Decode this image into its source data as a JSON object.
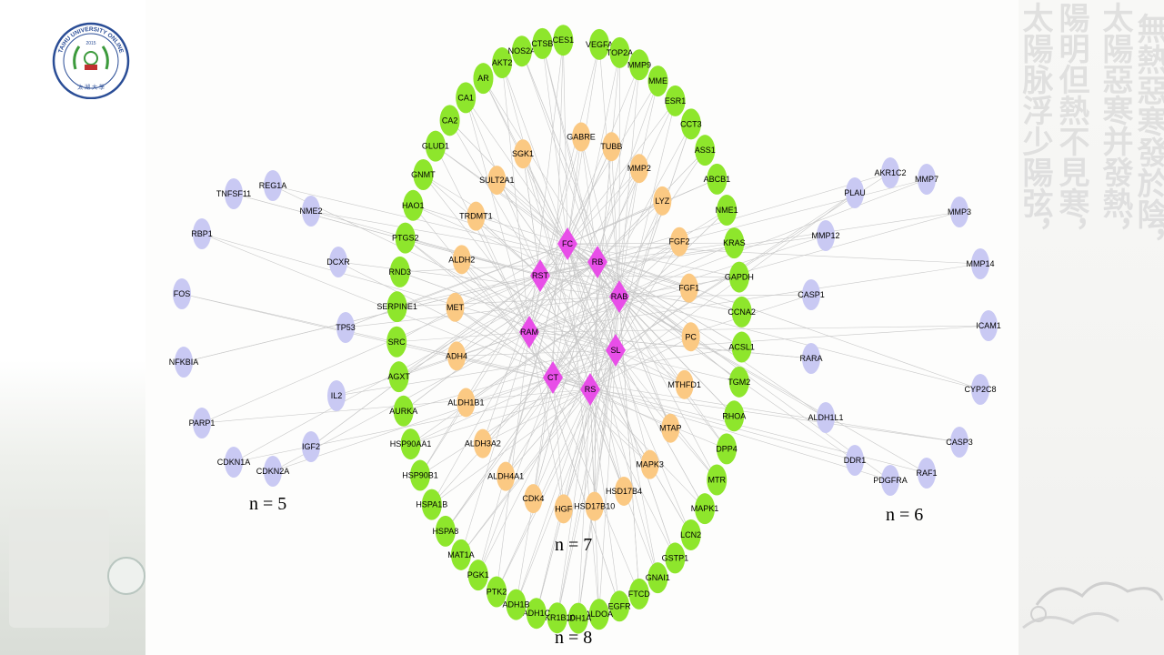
{
  "logo": {
    "top_text": "TAIHU UNIVERSITY ONLINE",
    "year": "2015",
    "bottom_text": "太 湖 大 學"
  },
  "calligraphy": [
    "無熱惡寒發於陰，",
    "太陽惡寒并發熱，",
    "陽明但熱不見寒，",
    "太陽脉浮少陽弦，"
  ],
  "network": {
    "center": [
      "FC",
      "RB",
      "RST",
      "RAB",
      "RAM",
      "SL",
      "CT",
      "RS"
    ],
    "inner_ring": [
      "GABRE",
      "TUBB",
      "MMP2",
      "LYZ",
      "FGF2",
      "FGF1",
      "PC",
      "MTHFD1",
      "MTAP",
      "MAPK3",
      "HSD17B4",
      "HSD17B10",
      "HGF",
      "CDK4",
      "ALDH4A1",
      "ALDH3A2",
      "ALDH1B1",
      "ADH4",
      "MET",
      "ALDH2",
      "TRDMT1",
      "SULT2A1",
      "SGK1"
    ],
    "outer_ring": [
      "VEGFA",
      "TOP2A",
      "MMP9",
      "MME",
      "ESR1",
      "CCT3",
      "ASS1",
      "ABCB1",
      "NME1",
      "KRAS",
      "GAPDH",
      "CCNA2",
      "ACSL1",
      "TGM2",
      "RHOA",
      "DPP4",
      "MTR",
      "MAPK1",
      "LCN2",
      "GSTP1",
      "GNAI1",
      "FTCD",
      "EGFR",
      "ALDOA",
      "LDH1A",
      "AKR1B10",
      "ADH1C",
      "ADH1B",
      "PTK2",
      "PGK1",
      "MAT1A",
      "HSPA8",
      "HSPA1B",
      "HSP90B1",
      "HSP90AA1",
      "AURKA",
      "AGXT",
      "SRC",
      "SERPINE1",
      "RND3",
      "PTGS2",
      "HAO1",
      "GNMT",
      "GLUD1",
      "CA2",
      "CA1",
      "AR",
      "AKT2",
      "NOS2A",
      "CTSB",
      "CES1"
    ],
    "left_group": [
      "TNFSF11",
      "REG1A",
      "NME2",
      "RBP1",
      "DCXR",
      "FOS",
      "TP53",
      "NFKBIA",
      "IL2",
      "PARP1",
      "IGF2",
      "CDKN1A",
      "CDKN2A"
    ],
    "right_group": [
      "AKR1C2",
      "MMP7",
      "PLAU",
      "MMP3",
      "MMP12",
      "MMP14",
      "CASP1",
      "ICAM1",
      "RARA",
      "CYP2C8",
      "ALDH1L1",
      "CASP3",
      "DDR1",
      "RAF1",
      "PDGFRA"
    ],
    "group_labels": {
      "left": "n = 5",
      "right": "n = 6",
      "inner": "n = 7",
      "outer": "n = 8"
    }
  },
  "colors": {
    "center": "#e84ee8",
    "inner": "#fbc983",
    "outer": "#8ee62c",
    "side": "#c9c9f3",
    "edge": "#c8c8c8"
  }
}
